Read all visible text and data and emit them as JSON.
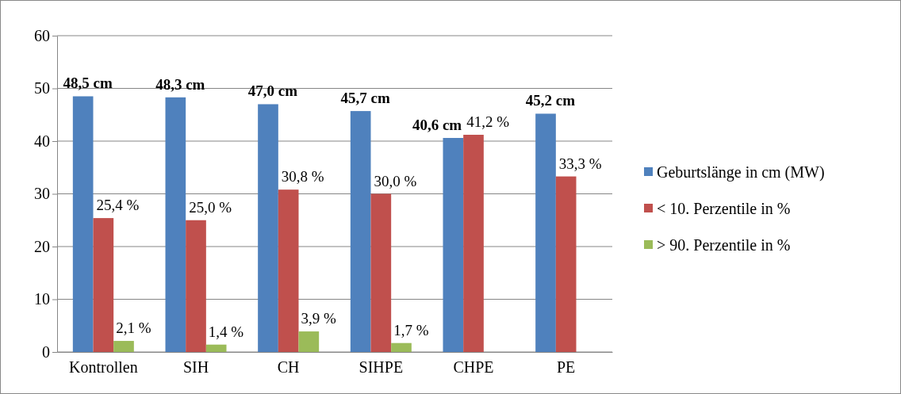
{
  "chart_data": {
    "type": "bar",
    "categories": [
      "Kontrollen",
      "SIH",
      "CH",
      "SIHPE",
      "CHPE",
      "PE"
    ],
    "series": [
      {
        "name": "Geburtslänge in cm (MW)",
        "color": "#4f81bd",
        "values": [
          48.5,
          48.3,
          47.0,
          45.7,
          40.6,
          45.2
        ],
        "value_labels": [
          "48,5 cm",
          "48,3 cm",
          "47,0 cm",
          "45,7 cm",
          "40,6 cm",
          "45,2 cm"
        ]
      },
      {
        "name": "< 10. Perzentile in %",
        "color": "#c0504d",
        "values": [
          25.4,
          25.0,
          30.8,
          30.0,
          41.2,
          33.3
        ],
        "value_labels": [
          "25,4 %",
          "25,0 %",
          "30,8 %",
          "30,0 %",
          "41,2 %",
          "33,3 %"
        ]
      },
      {
        "name": "> 90. Perzentile in %",
        "color": "#9bbb59",
        "values": [
          2.1,
          1.4,
          3.9,
          1.7,
          null,
          null
        ],
        "value_labels": [
          "2,1 %",
          "1,4 %",
          "3,9 %",
          "1,7 %",
          null,
          null
        ]
      }
    ],
    "ylim": [
      0,
      60
    ],
    "yticks": [
      0,
      10,
      20,
      30,
      40,
      50,
      60
    ],
    "grid": "y",
    "legend": "right"
  }
}
